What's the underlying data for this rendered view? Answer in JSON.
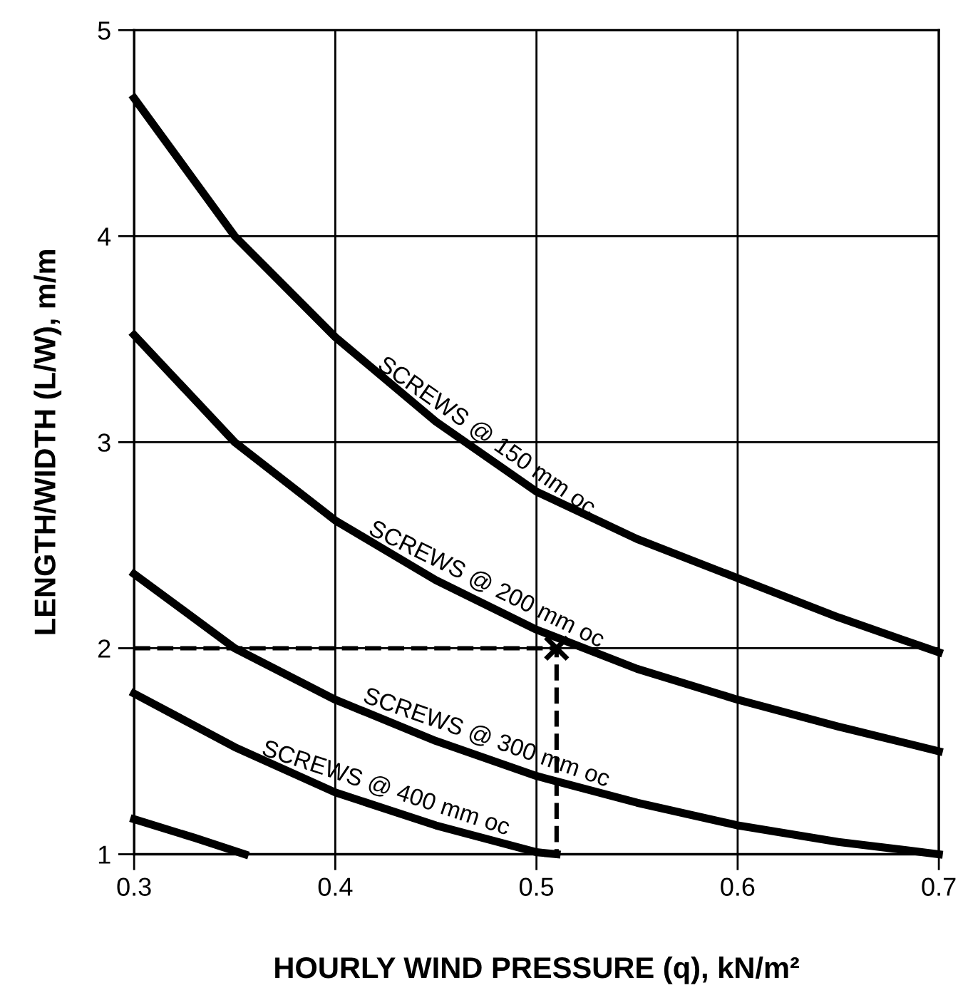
{
  "chart_data": {
    "type": "line",
    "xlabel": "HOURLY WIND PRESSURE (q), kN/m²",
    "ylabel": "LENGTH/WIDTH (L/W), m/m",
    "xlim": [
      0.3,
      0.7
    ],
    "xticks": [
      0.3,
      0.4,
      0.5,
      0.6,
      0.7
    ],
    "ylim": [
      1,
      5
    ],
    "yticks": [
      1,
      2,
      3,
      4,
      5
    ],
    "grid": true,
    "marker": "none",
    "line_style": "solid",
    "series": [
      {
        "name": "SCREWS @ 150 mm oc",
        "color": "#000000",
        "x": [
          0.3,
          0.35,
          0.4,
          0.45,
          0.5,
          0.55,
          0.6,
          0.65,
          0.7
        ],
        "values": [
          4.67,
          4.0,
          3.51,
          3.1,
          2.76,
          2.53,
          2.34,
          2.15,
          1.98
        ]
      },
      {
        "name": "SCREWS @ 200 mm oc",
        "color": "#000000",
        "x": [
          0.3,
          0.35,
          0.4,
          0.45,
          0.5,
          0.55,
          0.6,
          0.65,
          0.7
        ],
        "values": [
          3.52,
          3.0,
          2.62,
          2.33,
          2.09,
          1.9,
          1.75,
          1.62,
          1.5
        ]
      },
      {
        "name": "SCREWS @ 300 mm oc",
        "color": "#000000",
        "x": [
          0.3,
          0.35,
          0.4,
          0.45,
          0.5,
          0.55,
          0.6,
          0.65,
          0.7
        ],
        "values": [
          2.36,
          2.0,
          1.75,
          1.55,
          1.38,
          1.25,
          1.14,
          1.06,
          1.0
        ]
      },
      {
        "name": "SCREWS @ 400 mm oc",
        "color": "#000000",
        "x": [
          0.3,
          0.35,
          0.4,
          0.45,
          0.5,
          0.51
        ],
        "values": [
          1.78,
          1.52,
          1.3,
          1.14,
          1.01,
          1.0
        ]
      },
      {
        "color": "#000000",
        "x": [
          0.3,
          0.33,
          0.355
        ],
        "values": [
          1.17,
          1.08,
          1.0
        ]
      },
      {
        "color": "#000000",
        "line_style": "dashed",
        "x": [
          0.3,
          0.51,
          0.51
        ],
        "values": [
          2.0,
          2.0,
          1.0
        ]
      },
      {
        "color": "#000000",
        "type": "scatter",
        "marker": "cross",
        "x": [
          0.51
        ],
        "values": [
          2.0
        ]
      }
    ]
  }
}
